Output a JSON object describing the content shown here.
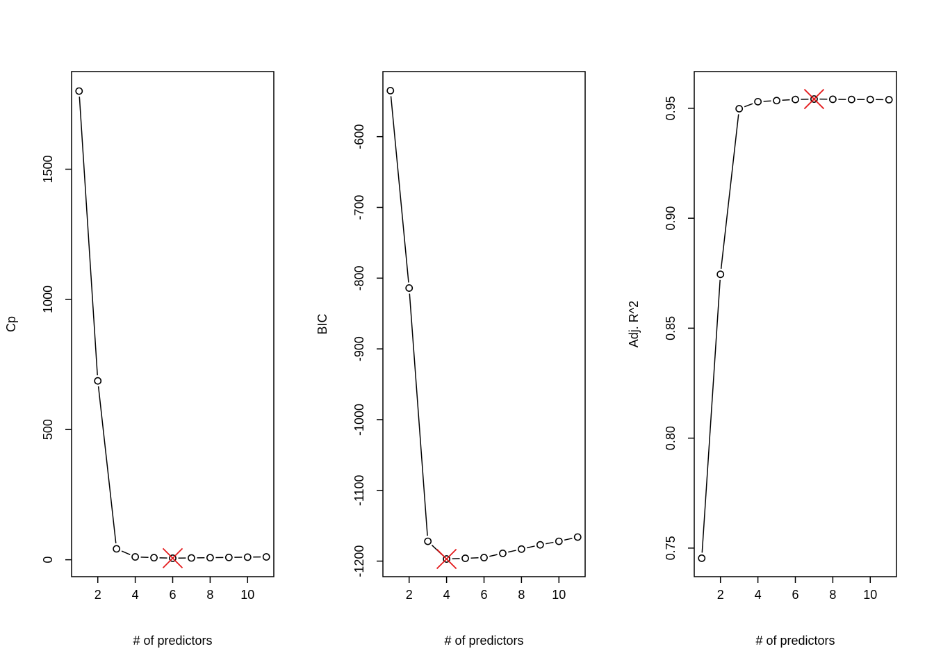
{
  "chart_data": [
    {
      "type": "line",
      "xlabel": "# of predictors",
      "ylabel": "Cp",
      "x": [
        1,
        2,
        3,
        4,
        5,
        6,
        7,
        8,
        9,
        10,
        11
      ],
      "values": [
        1800,
        687,
        42,
        11,
        8,
        6,
        7,
        8,
        9,
        10,
        11
      ],
      "xlim": [
        0.6,
        11.4
      ],
      "ylim": [
        -65,
        1875
      ],
      "xticks": [
        2,
        4,
        6,
        8,
        10
      ],
      "yticks": [
        0,
        500,
        1000,
        1500
      ],
      "best_index": 5,
      "best_color": "#e41a1c"
    },
    {
      "type": "line",
      "xlabel": "# of predictors",
      "ylabel": "BIC",
      "x": [
        1,
        2,
        3,
        4,
        5,
        6,
        7,
        8,
        9,
        10,
        11
      ],
      "values": [
        -535,
        -814,
        -1172,
        -1197,
        -1196,
        -1195,
        -1189,
        -1183,
        -1177,
        -1172,
        -1166
      ],
      "xlim": [
        0.6,
        11.4
      ],
      "ylim": [
        -1222,
        -508
      ],
      "xticks": [
        2,
        4,
        6,
        8,
        10
      ],
      "yticks": [
        -1200,
        -1100,
        -1000,
        -900,
        -800,
        -700,
        -600
      ],
      "best_index": 3,
      "best_color": "#e41a1c"
    },
    {
      "type": "line",
      "xlabel": "# of predictors",
      "ylabel": "Adj. R^2",
      "x": [
        1,
        2,
        3,
        4,
        5,
        6,
        7,
        8,
        9,
        10,
        11
      ],
      "values": [
        0.7454,
        0.8745,
        0.9498,
        0.953,
        0.9535,
        0.954,
        0.9542,
        0.9541,
        0.954,
        0.954,
        0.9539
      ],
      "xlim": [
        0.6,
        11.4
      ],
      "ylim": [
        0.737,
        0.9667
      ],
      "xticks": [
        2,
        4,
        6,
        8,
        10
      ],
      "yticks": [
        0.75,
        0.8,
        0.85,
        0.9,
        0.95
      ],
      "best_index": 6,
      "best_color": "#e41a1c"
    }
  ]
}
